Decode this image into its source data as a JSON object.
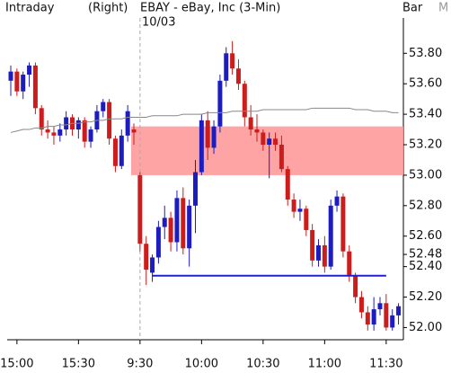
{
  "header": {
    "left": "Intraday",
    "mode": "(Right)",
    "title": "EBAY - eBay, Inc  (3-Min)",
    "date": "10/03",
    "chart_style": "Bar",
    "menu": "M"
  },
  "chart_data": {
    "type": "candlestick",
    "categories": [
      null,
      "15:00",
      null,
      null,
      null,
      null,
      null,
      null,
      null,
      null,
      null,
      "15:30",
      null,
      null,
      null,
      null,
      null,
      null,
      null,
      null,
      null,
      "9:30",
      null,
      null,
      null,
      null,
      null,
      null,
      null,
      null,
      null,
      "10:00",
      null,
      null,
      null,
      null,
      null,
      null,
      null,
      null,
      null,
      "10:30",
      null,
      null,
      null,
      null,
      null,
      null,
      null,
      null,
      null,
      "11:00",
      null,
      null,
      null,
      null,
      null,
      null,
      null,
      null,
      null,
      "11:30",
      null,
      null
    ],
    "open": [
      53.62,
      53.68,
      53.55,
      53.66,
      53.72,
      53.44,
      53.3,
      53.28,
      53.26,
      53.3,
      53.38,
      53.3,
      53.36,
      53.22,
      53.3,
      53.42,
      53.48,
      53.24,
      53.06,
      53.26,
      53.3,
      53.0,
      52.55,
      52.36,
      52.46,
      52.66,
      52.72,
      52.56,
      52.85,
      52.52,
      52.8,
      53.02,
      53.36,
      53.18,
      53.32,
      53.62,
      53.8,
      53.7,
      53.6,
      53.38,
      53.3,
      53.28,
      53.2,
      53.24,
      53.2,
      53.04,
      52.84,
      52.76,
      52.78,
      52.64,
      52.44,
      52.54,
      52.4,
      52.8,
      52.86,
      52.5,
      52.34,
      52.2,
      52.1,
      52.02,
      52.12,
      52.16,
      52.0,
      52.08
    ],
    "high": [
      53.72,
      53.7,
      53.68,
      53.74,
      53.74,
      53.46,
      53.36,
      53.32,
      53.34,
      53.42,
      53.4,
      53.38,
      53.38,
      53.32,
      53.46,
      53.5,
      53.5,
      53.26,
      53.3,
      53.46,
      53.34,
      53.02,
      52.6,
      52.48,
      52.7,
      52.8,
      52.76,
      52.9,
      52.92,
      52.84,
      53.1,
      53.4,
      53.42,
      53.36,
      53.66,
      53.84,
      53.88,
      53.76,
      53.62,
      53.46,
      53.4,
      53.3,
      53.28,
      53.28,
      53.26,
      53.06,
      52.88,
      52.84,
      52.8,
      52.68,
      52.58,
      52.6,
      52.84,
      52.9,
      52.88,
      52.54,
      52.36,
      52.24,
      52.14,
      52.2,
      52.2,
      52.22,
      52.12,
      52.16
    ],
    "low": [
      53.52,
      53.52,
      53.5,
      53.58,
      53.4,
      53.26,
      53.24,
      53.2,
      53.22,
      53.26,
      53.26,
      53.24,
      53.18,
      53.18,
      53.28,
      53.38,
      53.2,
      53.02,
      53.04,
      53.22,
      53.2,
      52.5,
      52.28,
      52.3,
      52.42,
      52.58,
      52.5,
      52.5,
      52.48,
      52.4,
      52.62,
      53.0,
      53.1,
      53.14,
      53.28,
      53.58,
      53.66,
      53.56,
      53.32,
      53.26,
      53.22,
      53.16,
      52.98,
      53.16,
      53.02,
      52.8,
      52.72,
      52.7,
      52.6,
      52.4,
      52.4,
      52.36,
      52.38,
      52.76,
      52.46,
      52.3,
      52.16,
      52.06,
      51.98,
      51.98,
      52.08,
      51.98,
      51.98,
      52.02
    ],
    "close": [
      53.68,
      53.55,
      53.66,
      53.72,
      53.44,
      53.3,
      53.28,
      53.26,
      53.3,
      53.38,
      53.3,
      53.36,
      53.22,
      53.3,
      53.42,
      53.48,
      53.24,
      53.06,
      53.26,
      53.42,
      53.28,
      52.55,
      52.38,
      52.46,
      52.66,
      52.72,
      52.56,
      52.85,
      52.52,
      52.8,
      53.02,
      53.36,
      53.18,
      53.32,
      53.62,
      53.8,
      53.7,
      53.6,
      53.38,
      53.3,
      53.28,
      53.2,
      53.24,
      53.2,
      53.04,
      52.84,
      52.76,
      52.78,
      52.64,
      52.44,
      52.54,
      52.4,
      52.8,
      52.86,
      52.5,
      52.34,
      52.2,
      52.1,
      52.02,
      52.12,
      52.16,
      52.0,
      52.08,
      52.14
    ],
    "moving_average": [
      53.28,
      53.29,
      53.3,
      53.3,
      53.31,
      53.31,
      53.32,
      53.32,
      53.33,
      53.33,
      53.34,
      53.34,
      53.35,
      53.35,
      53.36,
      53.36,
      53.37,
      53.37,
      53.37,
      53.38,
      53.38,
      53.38,
      53.38,
      53.39,
      53.39,
      53.39,
      53.39,
      53.39,
      53.4,
      53.4,
      53.4,
      53.4,
      53.41,
      53.41,
      53.41,
      53.41,
      53.42,
      53.42,
      53.42,
      53.42,
      53.42,
      53.43,
      53.43,
      53.43,
      53.43,
      53.43,
      53.43,
      53.43,
      53.43,
      53.44,
      53.44,
      53.44,
      53.44,
      53.44,
      53.44,
      53.44,
      53.43,
      53.43,
      53.43,
      53.42,
      53.42,
      53.42,
      53.41,
      53.41
    ],
    "up_color": "#1c1cc0",
    "down_color": "#cc1c1c",
    "ma_color": "#888888",
    "band": {
      "from": 53.0,
      "to": 53.32,
      "start": 20,
      "color": "#ff9a9a"
    },
    "level": {
      "value": 52.34,
      "start": 23,
      "end": 61,
      "color": "#2020d0"
    },
    "session_break": 21,
    "ylim": [
      51.92,
      54.02
    ],
    "yticks": [
      {
        "value": 53.8,
        "label": "53.80"
      },
      {
        "value": 53.6,
        "label": "53.60"
      },
      {
        "value": 53.4,
        "label": "53.40"
      },
      {
        "value": 53.2,
        "label": "53.20"
      },
      {
        "value": 53.0,
        "label": "53.00"
      },
      {
        "value": 52.8,
        "label": "52.80"
      },
      {
        "value": 52.6,
        "label": "52.60"
      },
      52.48,
      {
        "value": 52.4,
        "label": "52.40"
      },
      {
        "value": 52.2,
        "label": "52.20"
      },
      {
        "value": 52.0,
        "label": "52.00"
      }
    ]
  }
}
